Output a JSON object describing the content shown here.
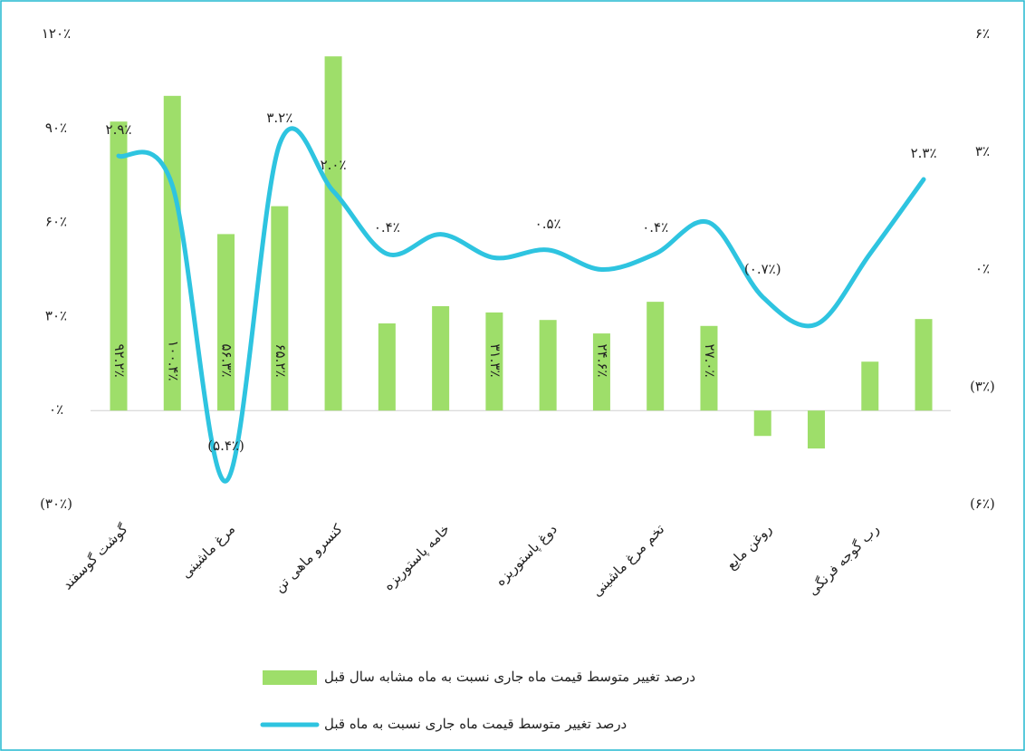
{
  "chart_data": {
    "type": "bar-line",
    "categories": [
      "گوشت گوسفند",
      null,
      "مرغ ماشینی",
      null,
      "کنسرو ماهی تن",
      null,
      "خامه پاستوریزه",
      null,
      "دوغ پاستوریزه",
      null,
      "تخم مرغ ماشینی",
      null,
      "روغن مایع",
      null,
      "رب گوجه فرنگی",
      null
    ],
    "series": [
      {
        "name": "درصد تغییر متوسط قیمت ماه جاری نسبت به ماه مشابه سال قبل",
        "color": "#9ede6a",
        "type": "bar",
        "values": [
          92.2,
          100.4,
          56.3,
          65.2,
          113,
          27.8,
          33.3,
          31.3,
          28.9,
          24.6,
          34.7,
          27.0,
          -8.1,
          -12.1,
          15.6,
          29.2
        ],
        "value_labels": [
          "۹۲.۲٪",
          "۱۰۰.۴٪",
          "۵۶.۳٪",
          "۶۵.۲٪",
          null,
          null,
          null,
          "۳۱.۳٪",
          null,
          "۲۴.۶٪",
          null,
          "۲۷.۰٪",
          null,
          null,
          null,
          null
        ]
      },
      {
        "name": "درصد تغییر متوسط قیمت ماه جاری نسبت به ماه قبل",
        "color": "#2ec4e0",
        "type": "line",
        "axis": "y2",
        "values": [
          2.9,
          2.15,
          -5.4,
          3.2,
          2.0,
          0.4,
          0.9,
          0.3,
          0.5,
          0.0,
          0.4,
          1.2,
          -0.7,
          -1.4,
          0.4,
          2.3
        ],
        "value_labels": [
          "۲.۹٪",
          null,
          "(۵.۴٪)",
          "۳.۲٪",
          "۲.۰٪",
          "۰.۴٪",
          null,
          null,
          "۰.۵٪",
          null,
          "۰.۴٪",
          null,
          "(۰.۷٪)",
          null,
          null,
          "۲.۳٪"
        ]
      }
    ],
    "ylim": [
      -30,
      120
    ],
    "yticks": [
      {
        "value": -30,
        "label": "(۳۰٪)"
      },
      {
        "value": 0,
        "label": "۰٪"
      },
      {
        "value": 30,
        "label": "۳۰٪"
      },
      {
        "value": 60,
        "label": "۶۰٪"
      },
      {
        "value": 90,
        "label": "۹۰٪"
      },
      {
        "value": 120,
        "label": "۱۲۰٪"
      }
    ],
    "y2lim": [
      -6,
      6
    ],
    "y2ticks": [
      {
        "value": -6,
        "label": "(۶٪)"
      },
      {
        "value": -3,
        "label": "(۳٪)"
      },
      {
        "value": 0,
        "label": "۰٪"
      },
      {
        "value": 3,
        "label": "۳٪"
      },
      {
        "value": 6,
        "label": "۶٪"
      }
    ],
    "legend": "bottom"
  }
}
